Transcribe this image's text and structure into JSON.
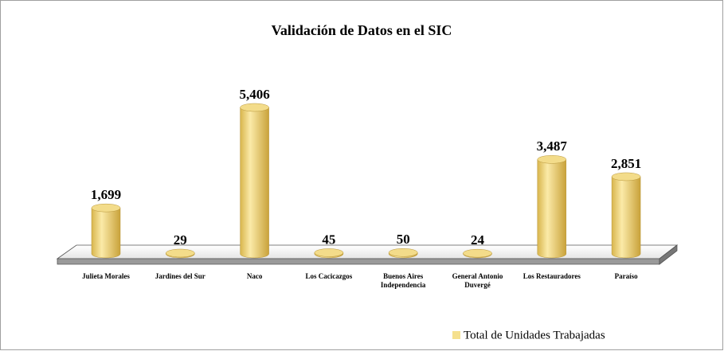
{
  "chart_data": {
    "type": "bar",
    "title": "Validación de Datos en el SIC",
    "categories": [
      "Julieta Morales",
      "Jardines del Sur",
      "Naco",
      "Los Cacicazgos",
      "Buenos Aires Independencia",
      "General Antonio Duvergé",
      "Los Restauradores",
      "Paraíso"
    ],
    "series": [
      {
        "name": "Total de Unidades Trabajadas",
        "color": "#f5e08e",
        "values": [
          1699,
          29,
          5406,
          45,
          50,
          24,
          3487,
          2851
        ],
        "value_labels": [
          "1,699",
          "29",
          "5,406",
          "45",
          "50",
          "24",
          "3,487",
          "2,851"
        ]
      }
    ],
    "legend": "bottom-right"
  }
}
